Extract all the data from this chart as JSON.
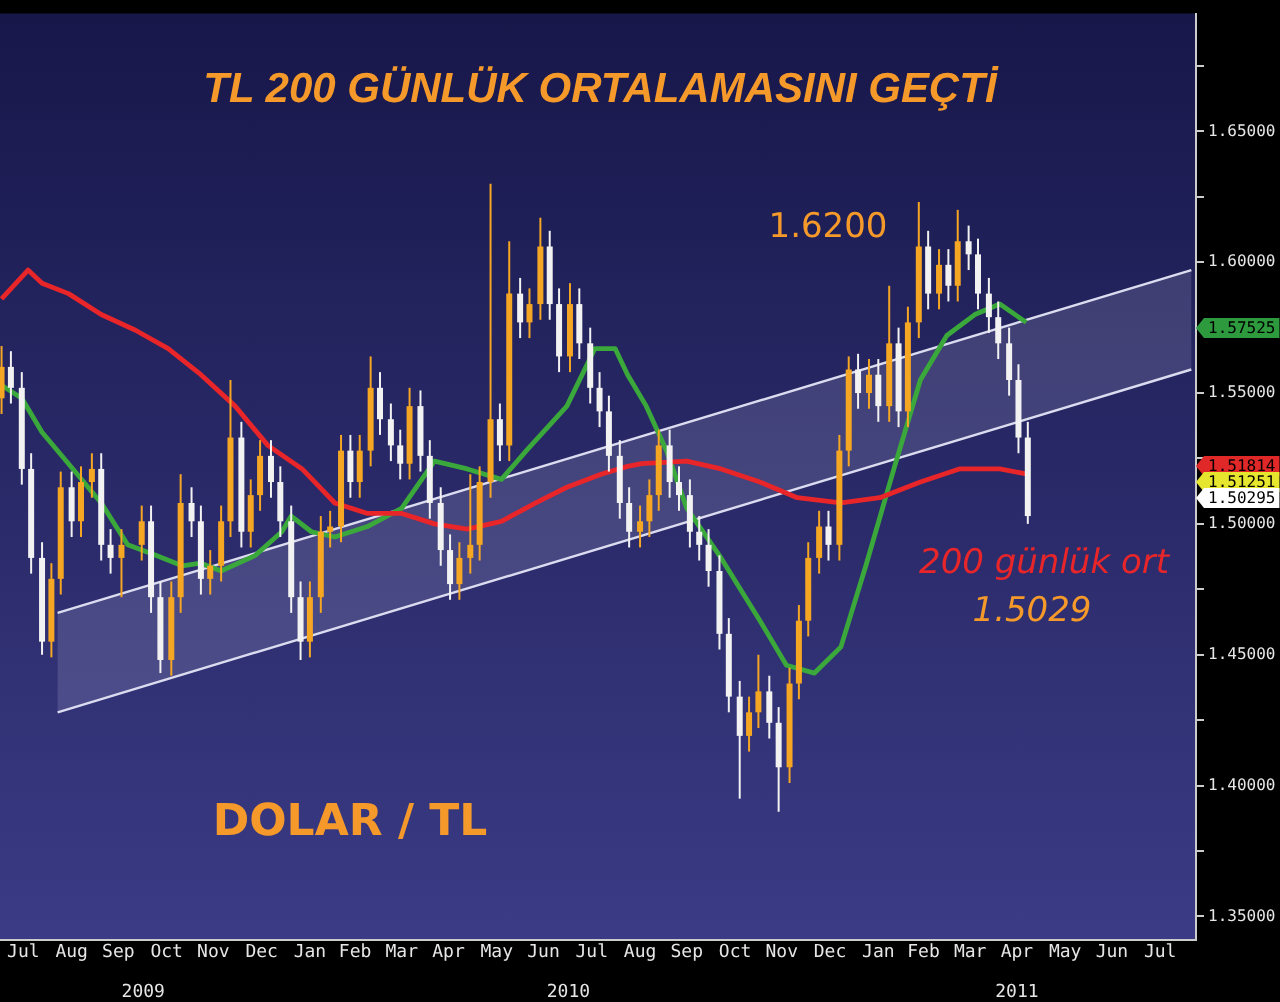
{
  "chart_data": {
    "type": "candlestick",
    "title": "TL 200 GÜNLÜK ORTALAMASINI GEÇTİ",
    "x": [
      "2009-07-02",
      "2009-07-08",
      "2009-07-15",
      "2009-07-21",
      "2009-07-28",
      "2009-08-03",
      "2009-08-09",
      "2009-08-16",
      "2009-08-22",
      "2009-08-29",
      "2009-09-04",
      "2009-09-10",
      "2009-09-17",
      "2009-09-30",
      "2009-10-06",
      "2009-10-12",
      "2009-10-19",
      "2009-10-25",
      "2009-11-01",
      "2009-11-07",
      "2009-11-13",
      "2009-11-20",
      "2009-11-26",
      "2009-12-03",
      "2009-12-09",
      "2009-12-15",
      "2009-12-22",
      "2009-12-28",
      "2010-01-04",
      "2010-01-10",
      "2010-01-16",
      "2010-01-23",
      "2010-01-29",
      "2010-02-05",
      "2010-02-11",
      "2010-02-17",
      "2010-02-24",
      "2010-03-02",
      "2010-03-09",
      "2010-03-15",
      "2010-03-21",
      "2010-03-28",
      "2010-04-03",
      "2010-04-10",
      "2010-04-16",
      "2010-04-22",
      "2010-04-29",
      "2010-05-05",
      "2010-05-12",
      "2010-05-18",
      "2010-05-24",
      "2010-05-31",
      "2010-06-06",
      "2010-06-13",
      "2010-06-19",
      "2010-06-25",
      "2010-07-02",
      "2010-07-08",
      "2010-07-15",
      "2010-07-21",
      "2010-07-27",
      "2010-08-03",
      "2010-08-09",
      "2010-08-16",
      "2010-08-22",
      "2010-08-28",
      "2010-09-04",
      "2010-09-10",
      "2010-09-17",
      "2010-09-23",
      "2010-09-29",
      "2010-10-06",
      "2010-10-12",
      "2010-10-19",
      "2010-10-25",
      "2010-10-31",
      "2010-11-07",
      "2010-11-13",
      "2010-11-20",
      "2010-11-26",
      "2010-12-02",
      "2010-12-09",
      "2010-12-15",
      "2010-12-22",
      "2010-12-28",
      "2011-01-03",
      "2011-01-10",
      "2011-01-16",
      "2011-01-23",
      "2011-01-29",
      "2011-02-04",
      "2011-02-11",
      "2011-02-17",
      "2011-02-24",
      "2011-03-02",
      "2011-03-08",
      "2011-03-15",
      "2011-03-21",
      "2011-03-28",
      "2011-04-03",
      "2011-04-10",
      "2011-04-16",
      "2011-04-22"
    ],
    "ohlc": [
      [
        1.548,
        1.568,
        1.542,
        1.56
      ],
      [
        1.56,
        1.566,
        1.546,
        1.552
      ],
      [
        1.552,
        1.558,
        1.515,
        1.521
      ],
      [
        1.521,
        1.527,
        1.481,
        1.487
      ],
      [
        1.487,
        1.493,
        1.45,
        1.455
      ],
      [
        1.455,
        1.485,
        1.449,
        1.479
      ],
      [
        1.479,
        1.52,
        1.473,
        1.514
      ],
      [
        1.514,
        1.52,
        1.495,
        1.501
      ],
      [
        1.501,
        1.522,
        1.495,
        1.516
      ],
      [
        1.516,
        1.527,
        1.51,
        1.521
      ],
      [
        1.521,
        1.527,
        1.486,
        1.492
      ],
      [
        1.492,
        1.498,
        1.481,
        1.487
      ],
      [
        1.487,
        1.498,
        1.472,
        1.492
      ],
      [
        1.492,
        1.507,
        1.486,
        1.501
      ],
      [
        1.501,
        1.507,
        1.466,
        1.472
      ],
      [
        1.472,
        1.478,
        1.443,
        1.448
      ],
      [
        1.448,
        1.478,
        1.442,
        1.472
      ],
      [
        1.472,
        1.519,
        1.466,
        1.508
      ],
      [
        1.508,
        1.514,
        1.495,
        1.501
      ],
      [
        1.501,
        1.507,
        1.473,
        1.479
      ],
      [
        1.479,
        1.49,
        1.473,
        1.484
      ],
      [
        1.484,
        1.507,
        1.478,
        1.501
      ],
      [
        1.501,
        1.555,
        1.495,
        1.533
      ],
      [
        1.533,
        1.539,
        1.491,
        1.497
      ],
      [
        1.497,
        1.517,
        1.491,
        1.511
      ],
      [
        1.511,
        1.532,
        1.505,
        1.526
      ],
      [
        1.526,
        1.532,
        1.51,
        1.516
      ],
      [
        1.516,
        1.522,
        1.495,
        1.501
      ],
      [
        1.501,
        1.507,
        1.466,
        1.472
      ],
      [
        1.472,
        1.478,
        1.448,
        1.455
      ],
      [
        1.455,
        1.478,
        1.449,
        1.472
      ],
      [
        1.472,
        1.503,
        1.466,
        1.497
      ],
      [
        1.497,
        1.505,
        1.491,
        1.499
      ],
      [
        1.499,
        1.534,
        1.493,
        1.528
      ],
      [
        1.528,
        1.534,
        1.51,
        1.516
      ],
      [
        1.516,
        1.534,
        1.51,
        1.528
      ],
      [
        1.528,
        1.564,
        1.522,
        1.552
      ],
      [
        1.552,
        1.558,
        1.534,
        1.54
      ],
      [
        1.54,
        1.546,
        1.524,
        1.53
      ],
      [
        1.53,
        1.536,
        1.517,
        1.523
      ],
      [
        1.523,
        1.552,
        1.517,
        1.545
      ],
      [
        1.545,
        1.551,
        1.52,
        1.526
      ],
      [
        1.526,
        1.532,
        1.502,
        1.508
      ],
      [
        1.508,
        1.514,
        1.484,
        1.49
      ],
      [
        1.49,
        1.496,
        1.471,
        1.477
      ],
      [
        1.477,
        1.493,
        1.471,
        1.487
      ],
      [
        1.487,
        1.519,
        1.481,
        1.492
      ],
      [
        1.492,
        1.522,
        1.486,
        1.516
      ],
      [
        1.516,
        1.63,
        1.51,
        1.54
      ],
      [
        1.54,
        1.546,
        1.524,
        1.53
      ],
      [
        1.53,
        1.608,
        1.524,
        1.588
      ],
      [
        1.588,
        1.594,
        1.571,
        1.577
      ],
      [
        1.577,
        1.59,
        1.571,
        1.584
      ],
      [
        1.584,
        1.617,
        1.578,
        1.606
      ],
      [
        1.606,
        1.612,
        1.578,
        1.584
      ],
      [
        1.584,
        1.59,
        1.558,
        1.564
      ],
      [
        1.564,
        1.592,
        1.558,
        1.584
      ],
      [
        1.584,
        1.59,
        1.563,
        1.569
      ],
      [
        1.569,
        1.575,
        1.546,
        1.552
      ],
      [
        1.552,
        1.558,
        1.537,
        1.543
      ],
      [
        1.543,
        1.549,
        1.52,
        1.526
      ],
      [
        1.526,
        1.532,
        1.502,
        1.508
      ],
      [
        1.508,
        1.514,
        1.491,
        1.497
      ],
      [
        1.497,
        1.507,
        1.491,
        1.501
      ],
      [
        1.501,
        1.517,
        1.495,
        1.511
      ],
      [
        1.511,
        1.536,
        1.505,
        1.53
      ],
      [
        1.53,
        1.536,
        1.51,
        1.516
      ],
      [
        1.516,
        1.522,
        1.505,
        1.511
      ],
      [
        1.511,
        1.517,
        1.491,
        1.497
      ],
      [
        1.497,
        1.503,
        1.486,
        1.492
      ],
      [
        1.492,
        1.498,
        1.476,
        1.482
      ],
      [
        1.482,
        1.488,
        1.452,
        1.458
      ],
      [
        1.458,
        1.464,
        1.428,
        1.434
      ],
      [
        1.434,
        1.44,
        1.395,
        1.419
      ],
      [
        1.419,
        1.434,
        1.413,
        1.428
      ],
      [
        1.428,
        1.45,
        1.422,
        1.436
      ],
      [
        1.436,
        1.442,
        1.418,
        1.424
      ],
      [
        1.424,
        1.43,
        1.39,
        1.407
      ],
      [
        1.407,
        1.445,
        1.401,
        1.439
      ],
      [
        1.439,
        1.469,
        1.433,
        1.463
      ],
      [
        1.463,
        1.493,
        1.457,
        1.487
      ],
      [
        1.487,
        1.505,
        1.481,
        1.499
      ],
      [
        1.499,
        1.505,
        1.486,
        1.492
      ],
      [
        1.492,
        1.534,
        1.486,
        1.528
      ],
      [
        1.528,
        1.564,
        1.522,
        1.559
      ],
      [
        1.559,
        1.565,
        1.544,
        1.55
      ],
      [
        1.55,
        1.563,
        1.544,
        1.557
      ],
      [
        1.557,
        1.563,
        1.539,
        1.545
      ],
      [
        1.545,
        1.591,
        1.539,
        1.569
      ],
      [
        1.569,
        1.575,
        1.537,
        1.543
      ],
      [
        1.543,
        1.583,
        1.537,
        1.577
      ],
      [
        1.577,
        1.623,
        1.571,
        1.606
      ],
      [
        1.606,
        1.612,
        1.582,
        1.588
      ],
      [
        1.588,
        1.605,
        1.582,
        1.599
      ],
      [
        1.599,
        1.605,
        1.585,
        1.591
      ],
      [
        1.591,
        1.62,
        1.585,
        1.608
      ],
      [
        1.608,
        1.614,
        1.597,
        1.603
      ],
      [
        1.603,
        1.609,
        1.582,
        1.588
      ],
      [
        1.588,
        1.594,
        1.573,
        1.579
      ],
      [
        1.579,
        1.585,
        1.563,
        1.569
      ],
      [
        1.569,
        1.575,
        1.549,
        1.555
      ],
      [
        1.555,
        1.561,
        1.527,
        1.533
      ],
      [
        1.533,
        1.539,
        1.5,
        1.503
      ]
    ],
    "series": [
      {
        "type": "line",
        "color": "#e8262a",
        "x": [
          "2009-07-02",
          "2009-07-19",
          "2009-07-28",
          "2009-08-14",
          "2009-09-04",
          "2009-09-26",
          "2009-10-17",
          "2009-11-07",
          "2009-11-29",
          "2009-12-20",
          "2010-01-11",
          "2010-02-01",
          "2010-02-22",
          "2010-03-16",
          "2010-04-06",
          "2010-04-27",
          "2010-05-19",
          "2010-06-10",
          "2010-06-30",
          "2010-07-22",
          "2010-08-08",
          "2010-08-17",
          "2010-09-15",
          "2010-10-07",
          "2010-11-01",
          "2010-11-25",
          "2010-12-23",
          "2011-01-17",
          "2011-02-12",
          "2011-03-09",
          "2011-04-04",
          "2011-04-22"
        ],
        "values": [
          1.586,
          1.597,
          1.592,
          1.588,
          1.58,
          1.574,
          1.567,
          1.557,
          1.545,
          1.53,
          1.521,
          1.508,
          1.504,
          1.504,
          1.5,
          1.498,
          1.501,
          1.508,
          1.514,
          1.519,
          1.522,
          1.523,
          1.524,
          1.521,
          1.516,
          1.51,
          1.508,
          1.51,
          1.516,
          1.521,
          1.521,
          1.519
        ]
      },
      {
        "type": "line",
        "color": "#3aa83a",
        "x": [
          "2009-07-02",
          "2009-07-15",
          "2009-07-28",
          "2009-08-14",
          "2009-09-04",
          "2009-09-21",
          "2009-10-09",
          "2009-10-26",
          "2009-11-07",
          "2009-11-20",
          "2009-12-12",
          "2009-12-29",
          "2010-01-04",
          "2010-01-17",
          "2010-02-01",
          "2010-02-22",
          "2010-03-16",
          "2010-04-06",
          "2010-04-27",
          "2010-05-19",
          "2010-06-04",
          "2010-06-30",
          "2010-07-18",
          "2010-07-31",
          "2010-08-08",
          "2010-08-20",
          "2010-09-02",
          "2010-09-15",
          "2010-10-07",
          "2010-11-01",
          "2010-11-18",
          "2010-12-06",
          "2010-12-23",
          "2011-01-08",
          "2011-01-26",
          "2011-02-12",
          "2011-03-01",
          "2011-03-19",
          "2011-04-04",
          "2011-04-21"
        ],
        "values": [
          1.553,
          1.548,
          1.535,
          1.523,
          1.508,
          1.492,
          1.488,
          1.484,
          1.485,
          1.482,
          1.488,
          1.497,
          1.503,
          1.497,
          1.495,
          1.499,
          1.506,
          1.524,
          1.521,
          1.517,
          1.528,
          1.545,
          1.567,
          1.567,
          1.557,
          1.545,
          1.528,
          1.506,
          1.487,
          1.463,
          1.446,
          1.443,
          1.453,
          1.484,
          1.521,
          1.555,
          1.572,
          1.58,
          1.584,
          1.577
        ]
      },
      {
        "type": "line",
        "color": "#dcdcf0",
        "x": [
          "2009-08-07",
          "2011-08-05"
        ],
        "values": [
          1.466,
          1.597
        ],
        "lower": [
          1.428,
          1.559
        ],
        "upper": [
          1.466,
          1.597
        ]
      },
      {
        "type": "line",
        "color": "#dcdcf0",
        "x": [
          "2009-08-07",
          "2011-08-05"
        ],
        "values": [
          1.428,
          1.559
        ]
      }
    ],
    "xlim": [
      "2009-07-01",
      "2011-08-08"
    ],
    "xticks": [
      {
        "value": "2009-07-16",
        "label": "Jul"
      },
      {
        "value": "2009-08-16",
        "label": "Aug"
      },
      {
        "value": "2009-09-15",
        "label": "Sep"
      },
      {
        "value": "2009-10-16",
        "label": "Oct"
      },
      {
        "value": "2009-11-15",
        "label": "Nov"
      },
      {
        "value": "2009-12-16",
        "label": "Dec"
      },
      {
        "value": "2010-01-16",
        "label": "Jan"
      },
      {
        "value": "2010-02-14",
        "label": "Feb"
      },
      {
        "value": "2010-03-16",
        "label": "Mar"
      },
      {
        "value": "2010-04-15",
        "label": "Apr"
      },
      {
        "value": "2010-05-16",
        "label": "May"
      },
      {
        "value": "2010-06-15",
        "label": "Jun"
      },
      {
        "value": "2010-07-16",
        "label": "Jul"
      },
      {
        "value": "2010-08-16",
        "label": "Aug"
      },
      {
        "value": "2010-09-15",
        "label": "Sep"
      },
      {
        "value": "2010-10-16",
        "label": "Oct"
      },
      {
        "value": "2010-11-15",
        "label": "Nov"
      },
      {
        "value": "2010-12-16",
        "label": "Dec"
      },
      {
        "value": "2011-01-16",
        "label": "Jan"
      },
      {
        "value": "2011-02-14",
        "label": "Feb"
      },
      {
        "value": "2011-03-16",
        "label": "Mar"
      },
      {
        "value": "2011-04-15",
        "label": "Apr"
      },
      {
        "value": "2011-05-16",
        "label": "May"
      },
      {
        "value": "2011-06-15",
        "label": "Jun"
      },
      {
        "value": "2011-07-16",
        "label": "Jul"
      }
    ],
    "x2lim": [
      "2009-07-01",
      "2011-08-08"
    ],
    "x2ticks": [
      {
        "value": "2009-10-01",
        "label": "2009"
      },
      {
        "value": "2010-07-01",
        "label": "2010"
      },
      {
        "value": "2011-04-15",
        "label": "2011"
      }
    ],
    "ylim": [
      1.341,
      1.695
    ],
    "yticks": [
      {
        "value": 1.35,
        "label": "1.35000"
      },
      {
        "value": 1.375,
        "label": null
      },
      {
        "value": 1.4,
        "label": "1.40000"
      },
      {
        "value": 1.425,
        "label": null
      },
      {
        "value": 1.45,
        "label": "1.45000"
      },
      {
        "value": 1.475,
        "label": null
      },
      {
        "value": 1.5,
        "label": "1.50000"
      },
      {
        "value": 1.525,
        "label": null
      },
      {
        "value": 1.55,
        "label": "1.55000"
      },
      {
        "value": 1.575,
        "label": null
      },
      {
        "value": 1.6,
        "label": "1.60000"
      },
      {
        "value": 1.625,
        "label": null
      },
      {
        "value": 1.65,
        "label": "1.65000"
      },
      {
        "value": 1.675,
        "label": null
      }
    ],
    "annotations": [
      "DOLAR / TL",
      "200 günlük ort",
      "1.5029",
      "1.6200",
      "1.57525",
      "1.51814",
      "1.51251",
      "1.50295"
    ],
    "grid": false,
    "legend": false
  }
}
